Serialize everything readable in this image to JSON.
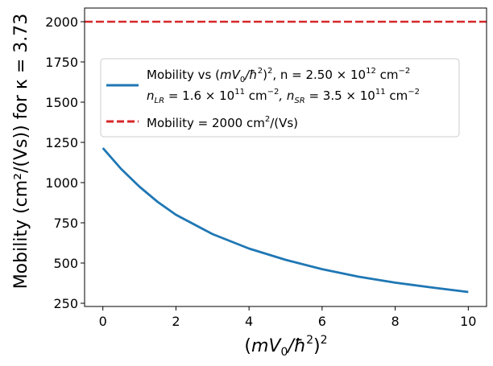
{
  "chart_data": {
    "type": "line",
    "title": "",
    "xlabel": "(mV₀/ħ²)²",
    "ylabel": "Mobility (cm²/(Vs)) for  κ = 3.73",
    "xlim": [
      -0.5,
      10.5
    ],
    "ylim": [
      230,
      2085
    ],
    "xticks": [
      0,
      2,
      4,
      6,
      8,
      10
    ],
    "yticks": [
      250,
      500,
      750,
      1000,
      1250,
      1500,
      1750,
      2000
    ],
    "xtick_labels": [
      "0",
      "2",
      "4",
      "6",
      "8",
      "10"
    ],
    "ytick_labels": [
      "250",
      "500",
      "750",
      "1000",
      "1250",
      "1500",
      "1750",
      "2000"
    ],
    "series": [
      {
        "name": "Mobility vs (mV₀/ħ²)², n = 2.50 × 10¹² cm⁻²",
        "name_line2": "n_LR = 1.6 × 10¹¹ cm⁻²,  n_SR = 3.5 × 10¹¹ cm⁻²",
        "color": "#1f77b4",
        "style": "solid",
        "x": [
          0,
          0.5,
          1,
          1.5,
          2,
          3,
          4,
          5,
          6,
          7,
          8,
          9,
          10
        ],
        "y": [
          1215,
          1085,
          975,
          880,
          800,
          680,
          590,
          520,
          462,
          415,
          378,
          348,
          320
        ]
      },
      {
        "name": "Mobility = 2000 cm²/(Vs)",
        "color": "#d62728",
        "style": "dashed",
        "x": [
          -0.5,
          10.5
        ],
        "y": [
          2000,
          2000
        ]
      }
    ],
    "legend_position": "center-top"
  },
  "legend": {
    "entry1_prefix": "Mobility vs (",
    "entry1_var": "mV",
    "entry1_sub0": "0",
    "entry1_slash": "/ħ",
    "entry1_sup2": "2",
    "entry1_close": ")",
    "entry1_sq": "2",
    "entry1_n": ", n = 2.50 × 10",
    "entry1_exp12": "12",
    "entry1_unit": " cm",
    "entry1_unitexp": "−2",
    "entry2_nlr": "n",
    "entry2_lr": "LR",
    "entry2_mid": " = 1.6 × 10",
    "entry2_exp11a": "11",
    "entry2_cm1": " cm",
    "entry2_exp_a": "−2",
    "entry2_sep": ",  n",
    "entry2_sr": "SR",
    "entry2_mid2": " = 3.5 × 10",
    "entry2_exp11b": "11",
    "entry2_cm2": " cm",
    "entry2_exp_b": "−2",
    "entry3": "Mobility = 2000 cm",
    "entry3_sup": "2",
    "entry3_end": "/(Vs)"
  }
}
